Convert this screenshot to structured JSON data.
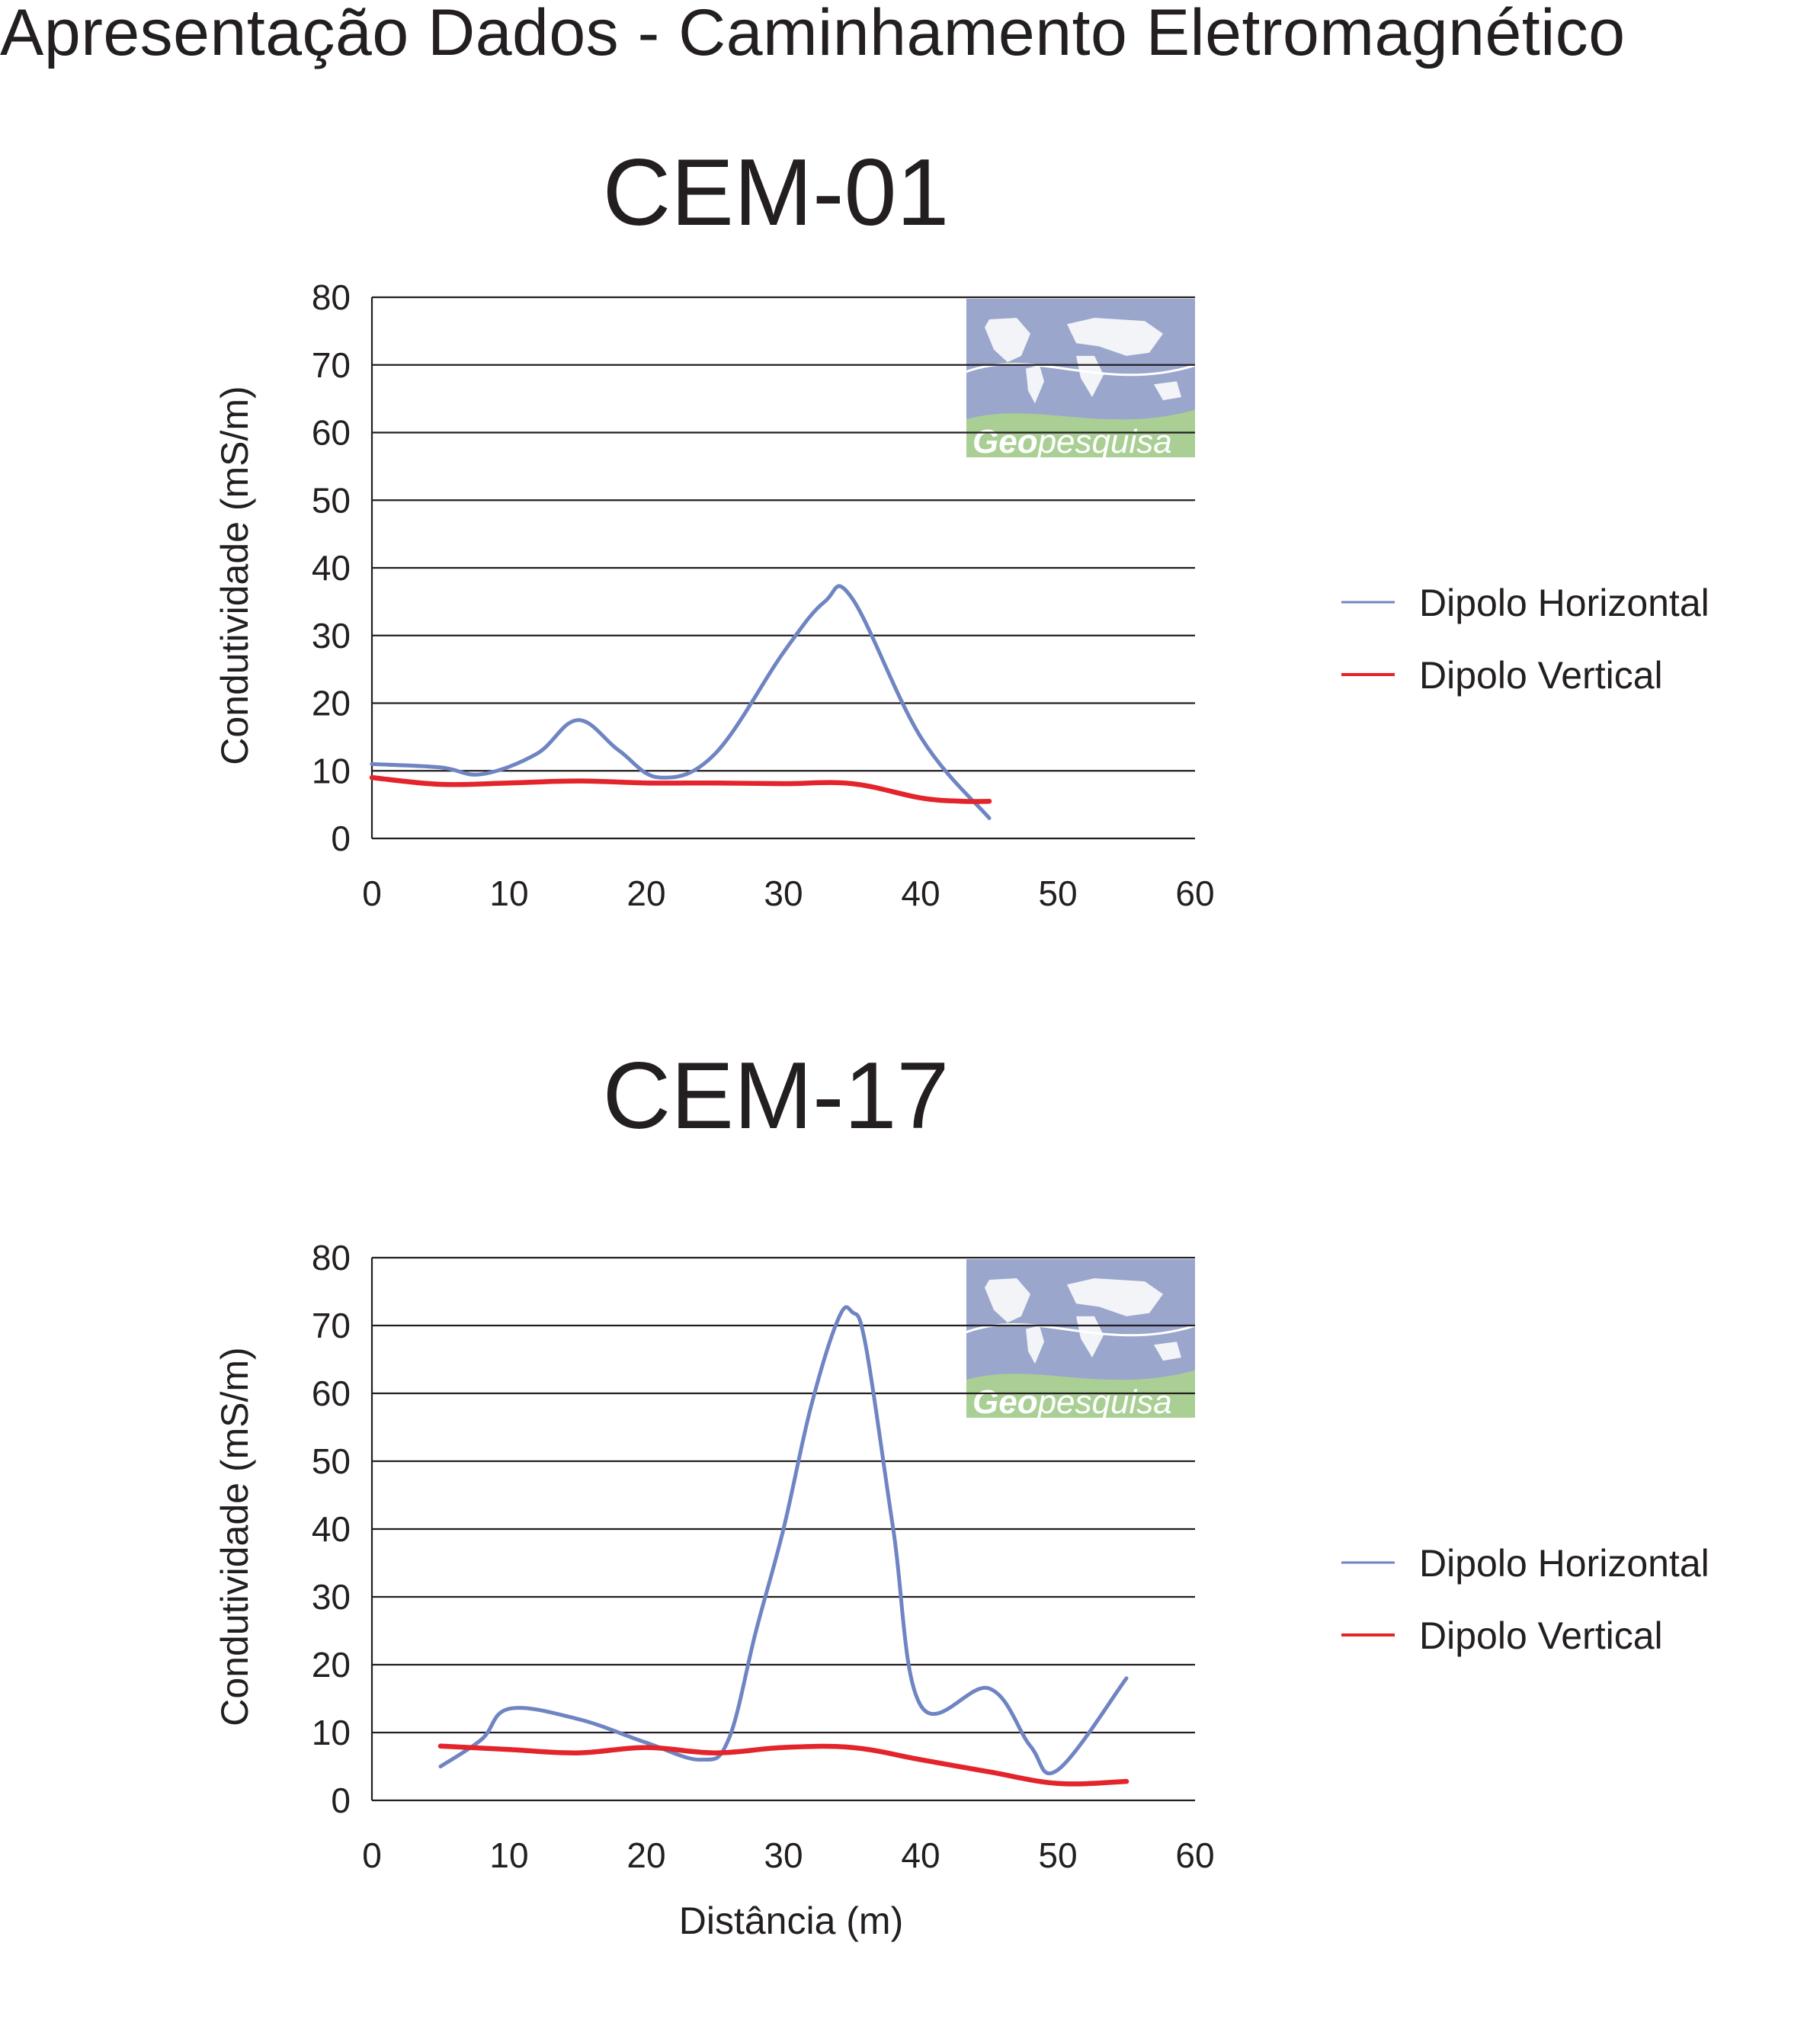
{
  "header": {
    "title": "Apresentação Dados - Caminhamento Eletromagnético"
  },
  "watermark": {
    "text_bold": "Geo",
    "text_regular": "pesquisa"
  },
  "colors": {
    "horizontal": "#6f84c2",
    "vertical": "#e3242b",
    "grid": "#231f20",
    "map_bg": "#9aa6cc",
    "map_band": "#a9cf95",
    "land": "#f2f4f8"
  },
  "chart_data": [
    {
      "type": "line",
      "title": "CEM-01",
      "xlabel": "",
      "ylabel": "Condutividade (mS/m)",
      "xlim": [
        0,
        60
      ],
      "ylim": [
        0,
        80
      ],
      "xticks": [
        "0",
        "10",
        "20",
        "30",
        "40",
        "50",
        "60"
      ],
      "yticks": [
        "0",
        "10",
        "20",
        "30",
        "40",
        "50",
        "60",
        "70",
        "80"
      ],
      "grid": "horizontal",
      "legend_position": "right",
      "series": [
        {
          "name": "Dipolo Horizontal",
          "color": "#6f84c2",
          "points": [
            [
              0,
              11
            ],
            [
              5,
              10.5
            ],
            [
              8,
              9.5
            ],
            [
              12,
              12.5
            ],
            [
              15,
              17.5
            ],
            [
              18,
              13
            ],
            [
              21,
              9
            ],
            [
              25,
              12.5
            ],
            [
              30,
              27.5
            ],
            [
              33,
              35
            ],
            [
              35,
              35.5
            ],
            [
              40,
              15
            ],
            [
              45,
              3
            ]
          ]
        },
        {
          "name": "Dipolo Vertical",
          "color": "#e3242b",
          "points": [
            [
              0,
              9
            ],
            [
              5,
              8
            ],
            [
              10,
              8.2
            ],
            [
              15,
              8.5
            ],
            [
              20,
              8.2
            ],
            [
              25,
              8.2
            ],
            [
              30,
              8.1
            ],
            [
              35,
              8.1
            ],
            [
              40,
              6
            ],
            [
              43,
              5.5
            ],
            [
              45,
              5.5
            ]
          ]
        }
      ]
    },
    {
      "type": "line",
      "title": "CEM-17",
      "xlabel": "Distância (m)",
      "ylabel": "Condutividade (mS/m)",
      "xlim": [
        0,
        60
      ],
      "ylim": [
        0,
        80
      ],
      "xticks": [
        "0",
        "10",
        "20",
        "30",
        "40",
        "50",
        "60"
      ],
      "yticks": [
        "0",
        "10",
        "20",
        "30",
        "40",
        "50",
        "60",
        "70",
        "80"
      ],
      "grid": "horizontal",
      "legend_position": "right",
      "series": [
        {
          "name": "Dipolo Horizontal",
          "color": "#6f84c2",
          "points": [
            [
              5,
              5
            ],
            [
              8,
              9
            ],
            [
              10,
              13.5
            ],
            [
              15,
              12
            ],
            [
              20,
              8.5
            ],
            [
              24,
              6
            ],
            [
              26,
              9
            ],
            [
              28,
              25
            ],
            [
              30,
              40
            ],
            [
              32,
              58
            ],
            [
              34,
              71
            ],
            [
              35,
              72
            ],
            [
              36,
              67
            ],
            [
              38,
              40
            ],
            [
              40,
              14
            ],
            [
              45,
              16.5
            ],
            [
              48,
              8
            ],
            [
              50,
              4.5
            ],
            [
              55,
              18
            ]
          ]
        },
        {
          "name": "Dipolo Vertical",
          "color": "#e3242b",
          "points": [
            [
              5,
              8
            ],
            [
              10,
              7.5
            ],
            [
              15,
              7
            ],
            [
              20,
              7.8
            ],
            [
              25,
              7
            ],
            [
              30,
              7.8
            ],
            [
              35,
              7.8
            ],
            [
              40,
              6
            ],
            [
              45,
              4.2
            ],
            [
              50,
              2.5
            ],
            [
              55,
              2.8
            ]
          ]
        }
      ]
    }
  ]
}
